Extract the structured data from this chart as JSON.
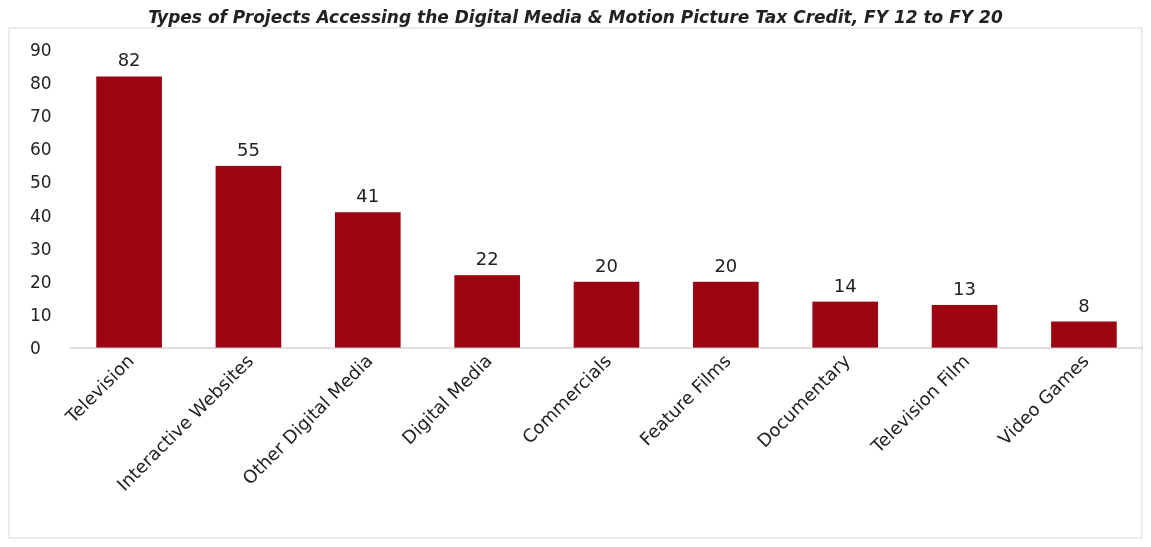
{
  "chart_data": {
    "type": "bar",
    "title": "Types of Projects Accessing the Digital Media & Motion Picture Tax Credit, FY 12 to FY 20",
    "categories": [
      "Television",
      "Interactive Websites",
      "Other Digital Media",
      "Digital Media",
      "Commercials",
      "Feature Films",
      "Documentary",
      "Television Film",
      "Video Games"
    ],
    "values": [
      82,
      55,
      41,
      22,
      20,
      20,
      14,
      13,
      8
    ],
    "color": "#9b0512",
    "data_labels": true,
    "grid": false,
    "ylim": [
      0,
      90
    ],
    "yticks": [
      0,
      10,
      20,
      30,
      40,
      50,
      60,
      70,
      80,
      90
    ]
  }
}
